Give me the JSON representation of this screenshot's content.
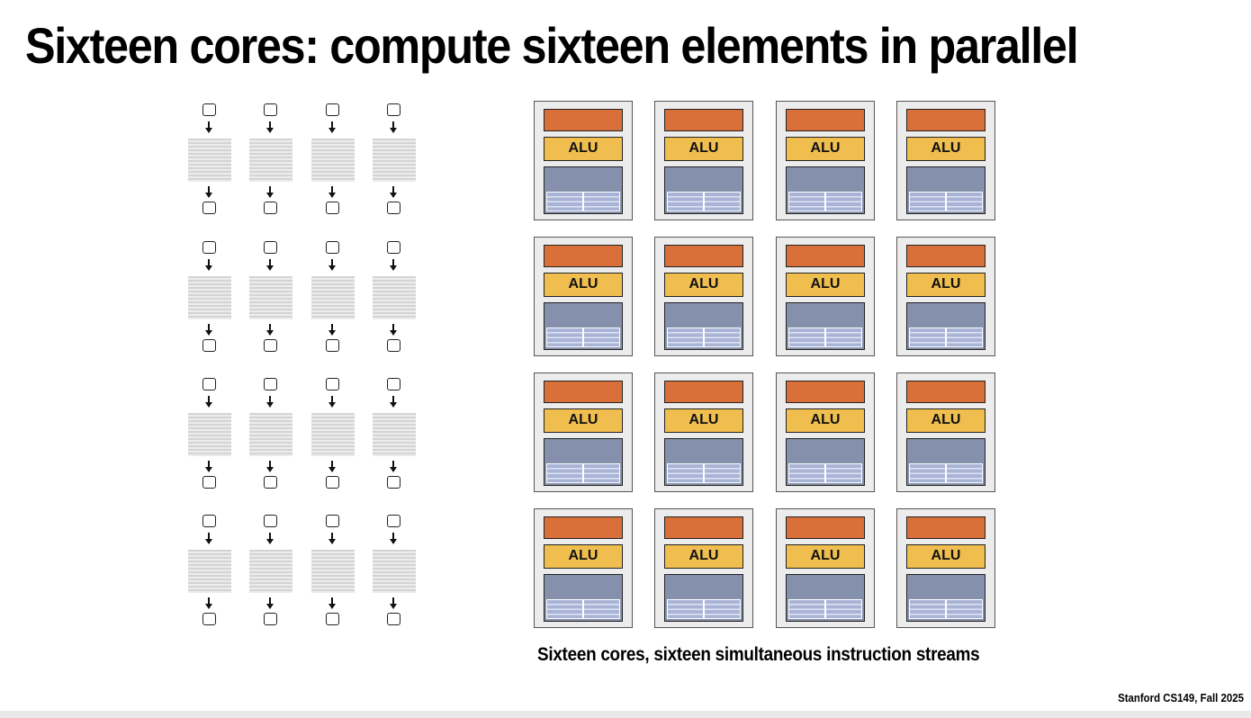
{
  "slide": {
    "title": "Sixteen cores: compute sixteen elements in parallel",
    "caption": "Sixteen cores, sixteen simultaneous instruction streams",
    "footer": "Stanford CS149, Fall 2025"
  },
  "cores": {
    "alu_label": "ALU"
  }
}
